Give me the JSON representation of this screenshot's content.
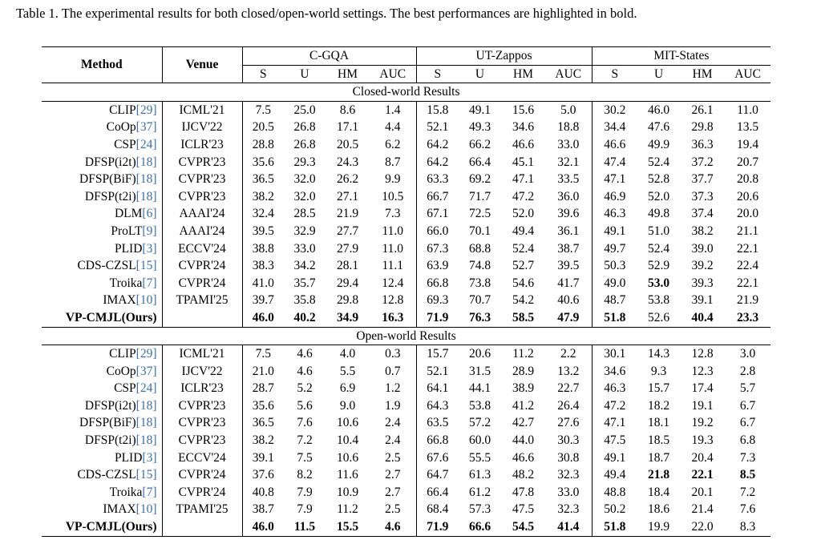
{
  "caption": "Table 1. The experimental results for both closed/open-world settings. The best performances are highlighted in bold.",
  "header": {
    "method": "Method",
    "venue": "Venue",
    "groups": [
      "C-GQA",
      "UT-Zappos",
      "MIT-States"
    ],
    "metrics": [
      "S",
      "U",
      "HM",
      "AUC"
    ]
  },
  "sections": [
    {
      "title": "Closed-world Results",
      "rows": [
        {
          "name": "CLIP",
          "cite": "[29]",
          "venue": "ICML'21",
          "vals": [
            "7.5",
            "25.0",
            "8.6",
            "1.4",
            "15.8",
            "49.1",
            "15.6",
            "5.0",
            "30.2",
            "46.0",
            "26.1",
            "11.0"
          ],
          "bold": []
        },
        {
          "name": "CoOp",
          "cite": "[37]",
          "venue": "IJCV'22",
          "vals": [
            "20.5",
            "26.8",
            "17.1",
            "4.4",
            "52.1",
            "49.3",
            "34.6",
            "18.8",
            "34.4",
            "47.6",
            "29.8",
            "13.5"
          ],
          "bold": []
        },
        {
          "name": "CSP",
          "cite": "[24]",
          "venue": "ICLR'23",
          "vals": [
            "28.8",
            "26.8",
            "20.5",
            "6.2",
            "64.2",
            "66.2",
            "46.6",
            "33.0",
            "46.6",
            "49.9",
            "36.3",
            "19.4"
          ],
          "bold": []
        },
        {
          "name": "DFSP(i2t)",
          "cite": "[18]",
          "venue": "CVPR'23",
          "vals": [
            "35.6",
            "29.3",
            "24.3",
            "8.7",
            "64.2",
            "66.4",
            "45.1",
            "32.1",
            "47.4",
            "52.4",
            "37.2",
            "20.7"
          ],
          "bold": []
        },
        {
          "name": "DFSP(BiF)",
          "cite": "[18]",
          "venue": "CVPR'23",
          "vals": [
            "36.5",
            "32.0",
            "26.2",
            "9.9",
            "63.3",
            "69.2",
            "47.1",
            "33.5",
            "47.1",
            "52.8",
            "37.7",
            "20.8"
          ],
          "bold": []
        },
        {
          "name": "DFSP(t2i)",
          "cite": "[18]",
          "venue": "CVPR'23",
          "vals": [
            "38.2",
            "32.0",
            "27.1",
            "10.5",
            "66.7",
            "71.7",
            "47.2",
            "36.0",
            "46.9",
            "52.0",
            "37.3",
            "20.6"
          ],
          "bold": []
        },
        {
          "name": "DLM",
          "cite": "[6]",
          "venue": "AAAI'24",
          "vals": [
            "32.4",
            "28.5",
            "21.9",
            "7.3",
            "67.1",
            "72.5",
            "52.0",
            "39.6",
            "46.3",
            "49.8",
            "37.4",
            "20.0"
          ],
          "bold": []
        },
        {
          "name": "ProLT",
          "cite": "[9]",
          "venue": "AAAI'24",
          "vals": [
            "39.5",
            "32.9",
            "27.7",
            "11.0",
            "66.0",
            "70.1",
            "49.4",
            "36.1",
            "49.1",
            "51.0",
            "38.2",
            "21.1"
          ],
          "bold": []
        },
        {
          "name": "PLID",
          "cite": "[3]",
          "venue": "ECCV'24",
          "vals": [
            "38.8",
            "33.0",
            "27.9",
            "11.0",
            "67.3",
            "68.8",
            "52.4",
            "38.7",
            "49.7",
            "52.4",
            "39.0",
            "22.1"
          ],
          "bold": []
        },
        {
          "name": "CDS-CZSL",
          "cite": "[15]",
          "venue": "CVPR'24",
          "vals": [
            "38.3",
            "34.2",
            "28.1",
            "11.1",
            "63.9",
            "74.8",
            "52.7",
            "39.5",
            "50.3",
            "52.9",
            "39.2",
            "22.4"
          ],
          "bold": []
        },
        {
          "name": "Troika",
          "cite": "[7]",
          "venue": "CVPR'24",
          "vals": [
            "41.0",
            "35.7",
            "29.4",
            "12.4",
            "66.8",
            "73.8",
            "54.6",
            "41.7",
            "49.0",
            "53.0",
            "39.3",
            "22.1"
          ],
          "bold": [
            9
          ]
        },
        {
          "name": "IMAX",
          "cite": "[10]",
          "venue": "TPAMI'25",
          "vals": [
            "39.7",
            "35.8",
            "29.8",
            "12.8",
            "69.3",
            "70.7",
            "54.2",
            "40.6",
            "48.7",
            "53.8",
            "39.1",
            "21.9"
          ],
          "bold": []
        },
        {
          "name": "VP-CMJL(Ours)",
          "cite": "",
          "venue": "",
          "vals": [
            "46.0",
            "40.2",
            "34.9",
            "16.3",
            "71.9",
            "76.3",
            "58.5",
            "47.9",
            "51.8",
            "52.6",
            "40.4",
            "23.3"
          ],
          "bold": [
            0,
            1,
            2,
            3,
            4,
            5,
            6,
            7,
            8,
            10,
            11
          ],
          "ours": true
        }
      ]
    },
    {
      "title": "Open-world Results",
      "rows": [
        {
          "name": "CLIP",
          "cite": "[29]",
          "venue": "ICML'21",
          "vals": [
            "7.5",
            "4.6",
            "4.0",
            "0.3",
            "15.7",
            "20.6",
            "11.2",
            "2.2",
            "30.1",
            "14.3",
            "12.8",
            "3.0"
          ],
          "bold": []
        },
        {
          "name": "CoOp",
          "cite": "[37]",
          "venue": "IJCV'22",
          "vals": [
            "21.0",
            "4.6",
            "5.5",
            "0.7",
            "52.1",
            "31.5",
            "28.9",
            "13.2",
            "34.6",
            "9.3",
            "12.3",
            "2.8"
          ],
          "bold": []
        },
        {
          "name": "CSP",
          "cite": "[24]",
          "venue": "ICLR'23",
          "vals": [
            "28.7",
            "5.2",
            "6.9",
            "1.2",
            "64.1",
            "44.1",
            "38.9",
            "22.7",
            "46.3",
            "15.7",
            "17.4",
            "5.7"
          ],
          "bold": []
        },
        {
          "name": "DFSP(i2t)",
          "cite": "[18]",
          "venue": "CVPR'23",
          "vals": [
            "35.6",
            "5.6",
            "9.0",
            "1.9",
            "64.3",
            "53.8",
            "41.2",
            "26.4",
            "47.2",
            "18.2",
            "19.1",
            "6.7"
          ],
          "bold": []
        },
        {
          "name": "DFSP(BiF)",
          "cite": "[18]",
          "venue": "CVPR'23",
          "vals": [
            "36.5",
            "7.6",
            "10.6",
            "2.4",
            "63.5",
            "57.2",
            "42.7",
            "27.6",
            "47.1",
            "18.1",
            "19.2",
            "6.7"
          ],
          "bold": []
        },
        {
          "name": "DFSP(t2i)",
          "cite": "[18]",
          "venue": "CVPR'23",
          "vals": [
            "38.2",
            "7.2",
            "10.4",
            "2.4",
            "66.8",
            "60.0",
            "44.0",
            "30.3",
            "47.5",
            "18.5",
            "19.3",
            "6.8"
          ],
          "bold": []
        },
        {
          "name": "PLID",
          "cite": "[3]",
          "venue": "ECCV'24",
          "vals": [
            "39.1",
            "7.5",
            "10.6",
            "2.5",
            "67.6",
            "55.5",
            "46.6",
            "30.8",
            "49.1",
            "18.7",
            "20.4",
            "7.3"
          ],
          "bold": []
        },
        {
          "name": "CDS-CZSL",
          "cite": "[15]",
          "venue": "CVPR'24",
          "vals": [
            "37.6",
            "8.2",
            "11.6",
            "2.7",
            "64.7",
            "61.3",
            "48.2",
            "32.3",
            "49.4",
            "21.8",
            "22.1",
            "8.5"
          ],
          "bold": [
            9,
            10,
            11
          ]
        },
        {
          "name": "Troika",
          "cite": "[7]",
          "venue": "CVPR'24",
          "vals": [
            "40.8",
            "7.9",
            "10.9",
            "2.7",
            "66.4",
            "61.2",
            "47.8",
            "33.0",
            "48.8",
            "18.4",
            "20.1",
            "7.2"
          ],
          "bold": []
        },
        {
          "name": "IMAX",
          "cite": "[10]",
          "venue": "TPAMI'25",
          "vals": [
            "38.7",
            "7.9",
            "11.2",
            "2.5",
            "68.4",
            "57.3",
            "47.5",
            "32.3",
            "50.2",
            "18.6",
            "21.4",
            "7.6"
          ],
          "bold": []
        },
        {
          "name": "VP-CMJL(Ours)",
          "cite": "",
          "venue": "",
          "vals": [
            "46.0",
            "11.5",
            "15.5",
            "4.6",
            "71.9",
            "66.6",
            "54.5",
            "41.4",
            "51.8",
            "19.9",
            "22.0",
            "8.3"
          ],
          "bold": [
            0,
            1,
            2,
            3,
            4,
            5,
            6,
            7,
            8
          ],
          "ours": true
        }
      ]
    }
  ],
  "colors": {
    "citation": "#3a6fb0",
    "text": "#000000",
    "background": "#ffffff"
  }
}
